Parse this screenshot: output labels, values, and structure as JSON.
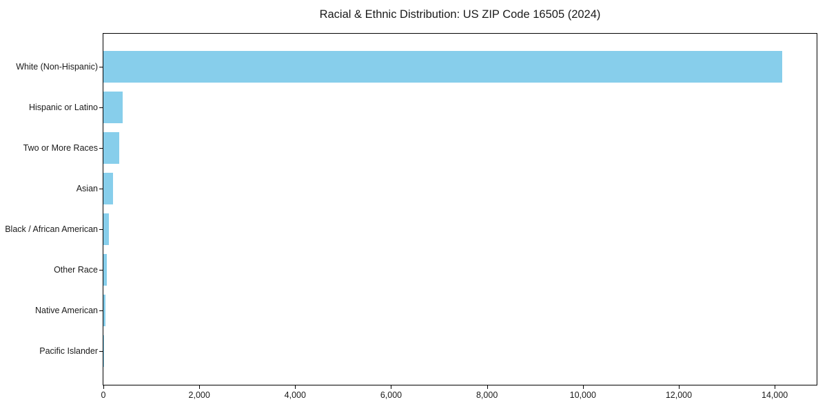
{
  "figure": {
    "background": "#ffffff"
  },
  "chart_data": {
    "type": "bar",
    "orientation": "horizontal",
    "title": "Racial & Ethnic Distribution: US ZIP Code 16505 (2024)",
    "categories": [
      "White (Non-Hispanic)",
      "Hispanic or Latino",
      "Two or More Races",
      "Asian",
      "Black / African American",
      "Other Race",
      "Native American",
      "Pacific Islander"
    ],
    "values": [
      14150,
      400,
      330,
      195,
      110,
      65,
      45,
      8
    ],
    "xlabel": "",
    "ylabel": "",
    "xlim": [
      0,
      14875
    ],
    "xticks": [
      0,
      2000,
      4000,
      6000,
      8000,
      10000,
      12000,
      14000
    ],
    "xtick_labels": [
      "0",
      "2,000",
      "4,000",
      "6,000",
      "8,000",
      "10,000",
      "12,000",
      "14,000"
    ],
    "bar_color": "#87CEEB",
    "axis_color": "#000000",
    "text_color": "#1a1a1a",
    "grid": false,
    "legend": "none",
    "value_labels_shown": false
  }
}
